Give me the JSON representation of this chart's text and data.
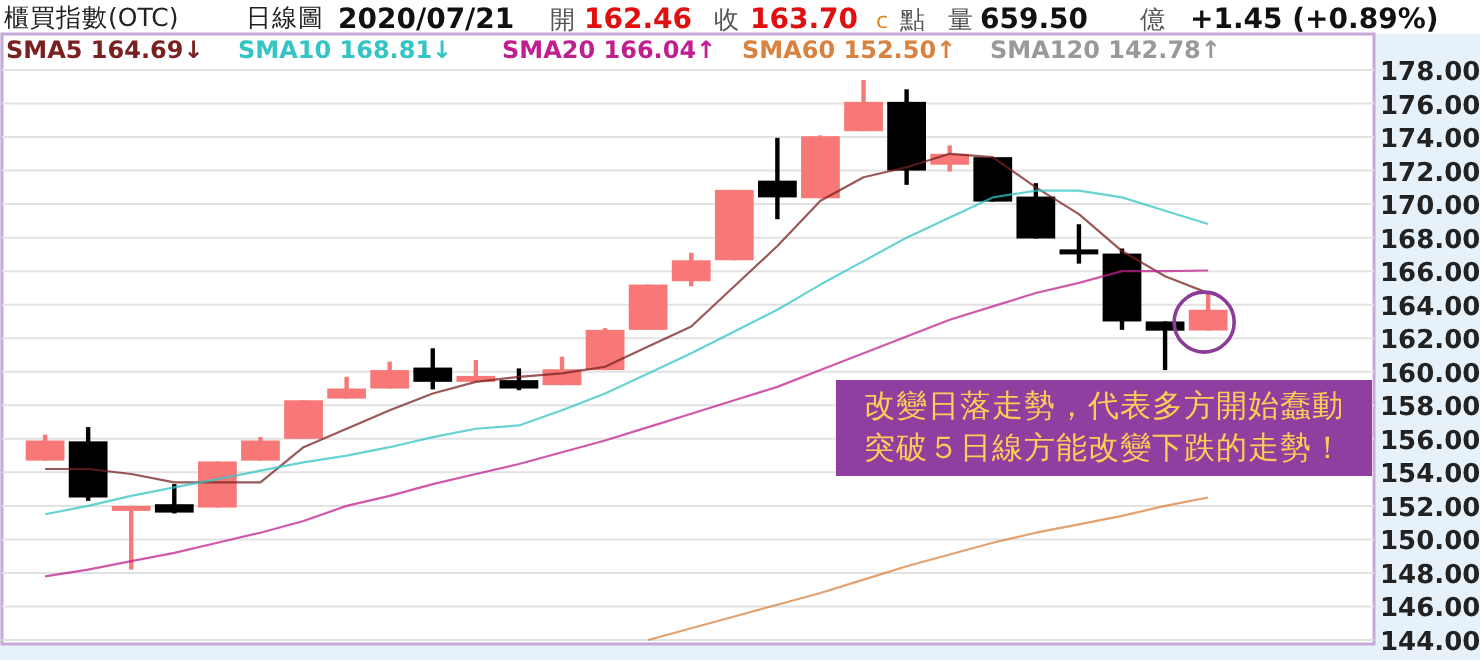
{
  "chart_data": {
    "type": "candlestick",
    "title": "櫃買指數(OTC)",
    "subtitle": "日線圖",
    "annotations": [
      "2020/07/21",
      "開",
      "162.46",
      "收",
      "163.70",
      "c",
      "點",
      "量",
      "659.50",
      "億",
      "+1.45 (+0.89%)",
      "改變日落走勢，代表多方開始蠢動",
      "突破５日線方能改變下跌的走勢！"
    ],
    "categories": [
      null,
      null,
      null,
      null,
      null,
      null,
      null,
      null,
      null,
      null,
      null,
      null,
      null,
      null,
      null,
      null,
      null,
      null,
      null,
      null,
      null,
      null,
      null,
      null,
      null,
      null,
      null,
      null
    ],
    "ohlc": [
      [
        154.7,
        156.25,
        154.7,
        155.9
      ],
      [
        155.85,
        156.7,
        152.3,
        152.5
      ],
      [
        151.7,
        152.0,
        148.2,
        152.0
      ],
      [
        152.1,
        153.3,
        151.55,
        151.6
      ],
      [
        151.9,
        154.65,
        151.9,
        154.65
      ],
      [
        154.7,
        156.1,
        154.7,
        155.9
      ],
      [
        156.0,
        158.3,
        156.0,
        158.3
      ],
      [
        158.4,
        159.7,
        158.4,
        159.0
      ],
      [
        159.0,
        160.6,
        159.0,
        160.1
      ],
      [
        160.25,
        161.4,
        158.95,
        159.4
      ],
      [
        159.4,
        160.7,
        159.4,
        159.75
      ],
      [
        159.5,
        160.2,
        158.9,
        159.0
      ],
      [
        159.2,
        160.9,
        159.2,
        160.15
      ],
      [
        160.1,
        162.6,
        160.1,
        162.5
      ],
      [
        162.5,
        165.2,
        162.5,
        165.2
      ],
      [
        165.4,
        167.1,
        165.1,
        166.65
      ],
      [
        166.65,
        170.85,
        166.65,
        170.85
      ],
      [
        171.4,
        173.95,
        169.1,
        170.4
      ],
      [
        170.35,
        174.1,
        170.35,
        174.05
      ],
      [
        174.35,
        177.4,
        174.35,
        176.1
      ],
      [
        176.1,
        176.85,
        171.15,
        172.0
      ],
      [
        172.35,
        173.5,
        171.95,
        173.0
      ],
      [
        172.8,
        172.8,
        170.15,
        170.15
      ],
      [
        170.45,
        171.25,
        167.95,
        167.95
      ],
      [
        167.3,
        168.8,
        166.45,
        167.0
      ],
      [
        167.05,
        167.35,
        162.5,
        163.0
      ],
      [
        163.0,
        163.0,
        160.1,
        162.45
      ],
      [
        162.46,
        164.75,
        162.46,
        163.7
      ]
    ],
    "colors": [
      "#f87878",
      "#000000",
      "#f87878",
      "#000000",
      "#f87878",
      "#f87878",
      "#f87878",
      "#f87878",
      "#f87878",
      "#000000",
      "#f87878",
      "#000000",
      "#f87878",
      "#f87878",
      "#f87878",
      "#f87878",
      "#f87878",
      "#000000",
      "#f87878",
      "#f87878",
      "#000000",
      "#f87878",
      "#000000",
      "#000000",
      "#000000",
      "#000000",
      "#000000",
      "#f87878"
    ],
    "series": [
      {
        "name": "SMA5 164.69↓",
        "type": "line",
        "color": "#7a2020",
        "values": [
          154.2,
          154.2,
          153.9,
          153.4,
          153.4,
          153.4,
          155.5,
          156.6,
          157.7,
          158.7,
          159.4,
          159.7,
          159.9,
          160.3,
          161.5,
          162.7,
          165.1,
          167.5,
          170.2,
          171.6,
          172.2,
          173.0,
          172.8,
          171.0,
          169.4,
          167.2,
          165.7,
          164.69
        ]
      },
      {
        "name": "SMA10 168.81↓",
        "type": "line",
        "color": "#33c4c4",
        "values": [
          151.5,
          152.0,
          152.6,
          153.1,
          153.6,
          154.1,
          154.6,
          155.0,
          155.5,
          156.1,
          156.6,
          156.8,
          157.7,
          158.7,
          159.9,
          161.1,
          162.4,
          163.7,
          165.2,
          166.6,
          168.0,
          169.2,
          170.4,
          170.8,
          170.8,
          170.4,
          169.6,
          168.81
        ]
      },
      {
        "name": "SMA20 166.04↑",
        "type": "line",
        "color": "#c0208f",
        "values": [
          147.8,
          148.2,
          148.7,
          149.2,
          149.8,
          150.4,
          151.1,
          152.0,
          152.6,
          153.3,
          153.9,
          154.5,
          155.2,
          155.9,
          156.7,
          157.5,
          158.3,
          159.1,
          160.1,
          161.1,
          162.1,
          163.1,
          163.9,
          164.7,
          165.3,
          166.0,
          166.0,
          166.04
        ]
      },
      {
        "name": "SMA60 152.50↑",
        "type": "line",
        "color": "#d9823f",
        "values": [
          null,
          null,
          null,
          null,
          null,
          null,
          null,
          null,
          null,
          null,
          null,
          null,
          null,
          null,
          144.0,
          144.7,
          145.4,
          146.1,
          146.8,
          147.6,
          148.4,
          149.1,
          149.8,
          150.4,
          150.9,
          151.4,
          152.0,
          152.5
        ]
      },
      {
        "name": "SMA120 142.78↑",
        "type": "line",
        "color": "#999999",
        "values": [
          null,
          null,
          null,
          null,
          null,
          null,
          null,
          null,
          null,
          null,
          null,
          null,
          null,
          null,
          null,
          null,
          null,
          null,
          null,
          null,
          null,
          null,
          null,
          null,
          null,
          null,
          null,
          null
        ]
      }
    ],
    "ylim": [
      144,
      178
    ],
    "yticks": [
      {
        "value": 144,
        "label": "144.00"
      },
      {
        "value": 146,
        "label": "146.00"
      },
      {
        "value": 148,
        "label": "148.00"
      },
      {
        "value": 150,
        "label": "150.00"
      },
      {
        "value": 152,
        "label": "152.00"
      },
      {
        "value": 154,
        "label": "154.00"
      },
      {
        "value": 156,
        "label": "156.00"
      },
      {
        "value": 158,
        "label": "158.00"
      },
      {
        "value": 160,
        "label": "160.00"
      },
      {
        "value": 162,
        "label": "162.00"
      },
      {
        "value": 164,
        "label": "164.00"
      },
      {
        "value": 166,
        "label": "166.00"
      },
      {
        "value": 168,
        "label": "168.00"
      },
      {
        "value": 170,
        "label": "170.00"
      },
      {
        "value": 172,
        "label": "172.00"
      },
      {
        "value": 174,
        "label": "174.00"
      },
      {
        "value": 176,
        "label": "176.00"
      },
      {
        "value": 178,
        "label": "178.00"
      }
    ],
    "grid": "y",
    "legend": "top left"
  }
}
